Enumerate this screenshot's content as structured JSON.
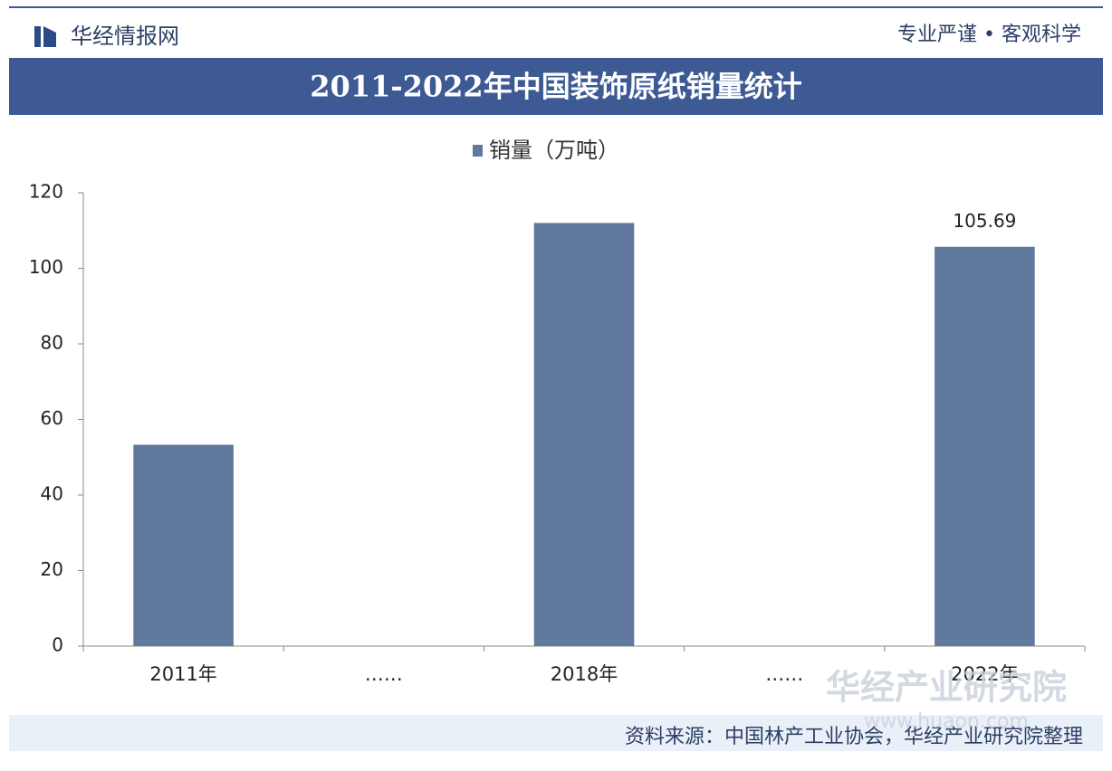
{
  "header": {
    "brand": "华经情报网",
    "slogan": "专业严谨 • 客观科学"
  },
  "chart_data": {
    "type": "bar",
    "title": "2011-2022年中国装饰原纸销量统计",
    "categories": [
      "2011年",
      "……",
      "2018年",
      "……",
      "2022年"
    ],
    "series": [
      {
        "name": "销量（万吨）",
        "color": "#61789f",
        "values": [
          53.3,
          null,
          112,
          null,
          105.69
        ],
        "value_labels": [
          null,
          null,
          null,
          null,
          "105.69"
        ]
      }
    ],
    "ylim": [
      0,
      120
    ],
    "yticks": [
      0,
      20,
      40,
      60,
      80,
      100,
      120
    ],
    "legend": "top"
  },
  "watermark": {
    "name": "华经产业研究院",
    "url": "www.huaon.com"
  },
  "source": "资料来源：中国林产工业协会，华经产业研究院整理"
}
